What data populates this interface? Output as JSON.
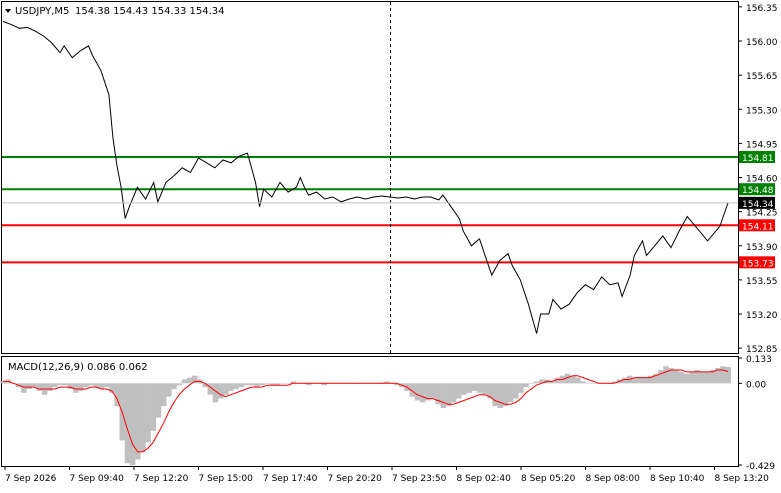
{
  "chart_data": [
    {
      "type": "line",
      "header": {
        "symbol_label": "USDJPY,M5",
        "ohlc_text": "154.38 154.43 154.33 154.34"
      },
      "ylim": [
        152.8,
        156.4
      ],
      "yticks": [
        "156.35",
        "156.00",
        "155.65",
        "155.30",
        "154.95",
        "154.60",
        "154.25",
        "153.90",
        "153.55",
        "153.20",
        "152.85"
      ],
      "current_price": "154.34",
      "levels": [
        {
          "label": "154.81",
          "value": 154.81,
          "color": "#008000"
        },
        {
          "label": "154.48",
          "value": 154.48,
          "color": "#008000"
        },
        {
          "label": "154.11",
          "value": 154.11,
          "color": "#ff0000"
        },
        {
          "label": "153.73",
          "value": 153.73,
          "color": "#ff0000"
        }
      ],
      "x": [
        "7 Sep 2026",
        "7 Sep 09:40",
        "7 Sep 12:20",
        "7 Sep 15:00",
        "7 Sep 17:40",
        "7 Sep 20:20",
        "7 Sep 23:50",
        "8 Sep 02:40",
        "8 Sep 05:20",
        "8 Sep 08:00",
        "8 Sep 10:40",
        "8 Sep 13:20"
      ],
      "series": [
        {
          "color": "#000000",
          "values": [
            [
              0,
              156.2
            ],
            [
              2,
              156.17
            ],
            [
              4,
              156.13
            ],
            [
              6,
              156.14
            ],
            [
              8,
              156.1
            ],
            [
              10,
              156.05
            ],
            [
              12,
              155.98
            ],
            [
              14,
              155.88
            ],
            [
              15,
              155.95
            ],
            [
              17,
              155.83
            ],
            [
              19,
              155.9
            ],
            [
              21,
              155.95
            ],
            [
              22,
              155.85
            ],
            [
              24,
              155.7
            ],
            [
              26,
              155.45
            ],
            [
              27,
              155.0
            ],
            [
              28,
              154.72
            ],
            [
              29,
              154.5
            ],
            [
              30,
              154.18
            ],
            [
              31,
              154.3
            ],
            [
              33,
              154.5
            ],
            [
              35,
              154.38
            ],
            [
              37,
              154.55
            ],
            [
              38,
              154.35
            ],
            [
              40,
              154.55
            ],
            [
              42,
              154.62
            ],
            [
              44,
              154.7
            ],
            [
              46,
              154.65
            ],
            [
              48,
              154.8
            ],
            [
              50,
              154.75
            ],
            [
              52,
              154.7
            ],
            [
              54,
              154.78
            ],
            [
              56,
              154.75
            ],
            [
              58,
              154.82
            ],
            [
              60,
              154.85
            ],
            [
              61,
              154.7
            ],
            [
              62,
              154.55
            ],
            [
              63,
              154.3
            ],
            [
              64,
              154.48
            ],
            [
              66,
              154.4
            ],
            [
              68,
              154.55
            ],
            [
              70,
              154.45
            ],
            [
              72,
              154.5
            ],
            [
              73,
              154.6
            ],
            [
              74,
              154.5
            ],
            [
              75,
              154.42
            ],
            [
              77,
              154.45
            ],
            [
              79,
              154.38
            ],
            [
              81,
              154.4
            ],
            [
              83,
              154.35
            ],
            [
              85,
              154.38
            ],
            [
              87,
              154.4
            ],
            [
              89,
              154.38
            ],
            [
              91,
              154.4
            ],
            [
              93,
              154.41
            ],
            [
              95,
              154.4
            ],
            [
              97,
              154.39
            ],
            [
              99,
              154.4
            ],
            [
              101,
              154.38
            ],
            [
              103,
              154.4
            ],
            [
              105,
              154.4
            ],
            [
              107,
              154.37
            ],
            [
              108,
              154.42
            ],
            [
              110,
              154.3
            ],
            [
              112,
              154.18
            ],
            [
              113,
              154.05
            ],
            [
              115,
              153.9
            ],
            [
              117,
              153.97
            ],
            [
              119,
              153.72
            ],
            [
              120,
              153.6
            ],
            [
              122,
              153.75
            ],
            [
              124,
              153.82
            ],
            [
              125,
              153.7
            ],
            [
              127,
              153.55
            ],
            [
              129,
              153.3
            ],
            [
              130,
              153.15
            ],
            [
              131,
              153.0
            ],
            [
              132,
              153.2
            ],
            [
              134,
              153.2
            ],
            [
              135,
              153.35
            ],
            [
              137,
              153.25
            ],
            [
              139,
              153.3
            ],
            [
              141,
              153.42
            ],
            [
              143,
              153.5
            ],
            [
              145,
              153.45
            ],
            [
              147,
              153.58
            ],
            [
              149,
              153.5
            ],
            [
              151,
              153.52
            ],
            [
              152,
              153.38
            ],
            [
              154,
              153.6
            ],
            [
              155,
              153.8
            ],
            [
              157,
              153.95
            ],
            [
              158,
              153.8
            ],
            [
              160,
              153.9
            ],
            [
              162,
              154.0
            ],
            [
              164,
              153.88
            ],
            [
              166,
              154.05
            ],
            [
              168,
              154.2
            ],
            [
              169,
              154.15
            ],
            [
              171,
              154.05
            ],
            [
              173,
              153.95
            ],
            [
              175,
              154.05
            ],
            [
              176,
              154.1
            ],
            [
              177,
              154.22
            ],
            [
              178,
              154.34
            ]
          ]
        }
      ]
    },
    {
      "type": "bar",
      "title": "MACD(12,26,9) 0.086 0.062",
      "ylim": [
        -0.429,
        0.133
      ],
      "yticks": [
        "0.133",
        "0.00",
        "-0.429"
      ],
      "series": [
        {
          "name": "MACD",
          "color": "#c0c0c0",
          "values": [
            0.01,
            0.02,
            0.0,
            -0.02,
            -0.05,
            -0.03,
            -0.02,
            -0.04,
            -0.06,
            -0.04,
            -0.02,
            -0.01,
            -0.01,
            -0.03,
            -0.05,
            -0.04,
            -0.02,
            -0.01,
            -0.02,
            -0.03,
            -0.02,
            -0.05,
            -0.12,
            -0.3,
            -0.42,
            -0.43,
            -0.4,
            -0.36,
            -0.31,
            -0.25,
            -0.18,
            -0.12,
            -0.07,
            -0.03,
            -0.01,
            0.02,
            0.03,
            0.04,
            0.02,
            -0.02,
            -0.06,
            -0.1,
            -0.08,
            -0.06,
            -0.04,
            -0.03,
            -0.02,
            -0.01,
            -0.01,
            -0.02,
            -0.01,
            0.0,
            -0.01,
            -0.01,
            0.0,
            0.0,
            0.01,
            0.0,
            0.0,
            -0.01,
            0.0,
            0.0,
            -0.01,
            0.0,
            0.0,
            0.0,
            0.0,
            0.0,
            0.0,
            0.0,
            0.0,
            0.0,
            0.0,
            0.0,
            0.01,
            0.0,
            -0.01,
            -0.02,
            -0.04,
            -0.07,
            -0.09,
            -0.1,
            -0.09,
            -0.08,
            -0.11,
            -0.13,
            -0.12,
            -0.1,
            -0.08,
            -0.06,
            -0.05,
            -0.04,
            -0.05,
            -0.06,
            -0.08,
            -0.12,
            -0.13,
            -0.12,
            -0.1,
            -0.08,
            -0.05,
            -0.02,
            0.0,
            0.01,
            0.02,
            0.02,
            0.01,
            0.03,
            0.04,
            0.05,
            0.04,
            0.03,
            0.01,
            0.0,
            0.0,
            0.0,
            0.0,
            0.0,
            0.01,
            0.02,
            0.03,
            0.04,
            0.03,
            0.03,
            0.03,
            0.04,
            0.05,
            0.07,
            0.09,
            0.08,
            0.07,
            0.06,
            0.05,
            0.06,
            0.07,
            0.06,
            0.06,
            0.07,
            0.08,
            0.09,
            0.086
          ]
        },
        {
          "name": "Signal",
          "color": "#ff0000",
          "values": [
            0.01,
            0.01,
            0.0,
            -0.01,
            -0.02,
            -0.02,
            -0.02,
            -0.03,
            -0.03,
            -0.03,
            -0.03,
            -0.02,
            -0.02,
            -0.02,
            -0.03,
            -0.03,
            -0.03,
            -0.02,
            -0.02,
            -0.03,
            -0.03,
            -0.04,
            -0.08,
            -0.15,
            -0.24,
            -0.32,
            -0.36,
            -0.36,
            -0.34,
            -0.31,
            -0.26,
            -0.21,
            -0.15,
            -0.1,
            -0.06,
            -0.03,
            -0.01,
            0.01,
            0.01,
            0.0,
            -0.02,
            -0.04,
            -0.06,
            -0.07,
            -0.06,
            -0.05,
            -0.04,
            -0.03,
            -0.02,
            -0.02,
            -0.02,
            -0.01,
            -0.01,
            -0.01,
            -0.01,
            -0.01,
            0.0,
            0.0,
            0.0,
            0.0,
            0.0,
            0.0,
            0.0,
            0.0,
            0.0,
            0.0,
            0.0,
            0.0,
            0.0,
            0.0,
            0.0,
            0.0,
            0.0,
            0.0,
            0.0,
            0.0,
            0.0,
            -0.01,
            -0.02,
            -0.04,
            -0.06,
            -0.07,
            -0.08,
            -0.08,
            -0.09,
            -0.1,
            -0.11,
            -0.11,
            -0.1,
            -0.09,
            -0.08,
            -0.07,
            -0.06,
            -0.06,
            -0.07,
            -0.09,
            -0.1,
            -0.11,
            -0.11,
            -0.1,
            -0.08,
            -0.05,
            -0.03,
            -0.01,
            0.0,
            0.01,
            0.01,
            0.02,
            0.02,
            0.03,
            0.04,
            0.04,
            0.03,
            0.02,
            0.01,
            0.0,
            0.0,
            0.0,
            0.0,
            0.01,
            0.02,
            0.02,
            0.03,
            0.03,
            0.03,
            0.03,
            0.04,
            0.05,
            0.06,
            0.07,
            0.07,
            0.07,
            0.06,
            0.06,
            0.06,
            0.06,
            0.06,
            0.06,
            0.07,
            0.07,
            0.062
          ]
        }
      ]
    }
  ]
}
